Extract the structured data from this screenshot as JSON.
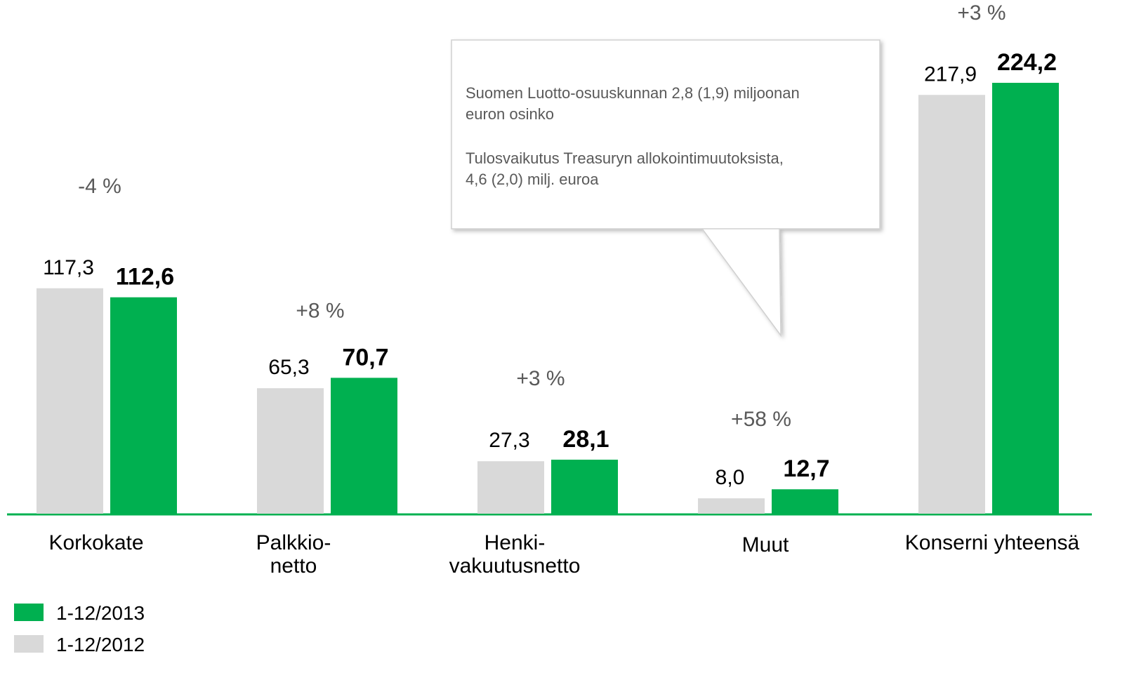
{
  "chart_data": {
    "type": "bar",
    "categories": [
      "Korkokate",
      "Palkkio-\nnetto",
      "Henki-\nvakuutusnetto",
      "Muut",
      "Konserni yhteensä"
    ],
    "series": [
      {
        "name": "1-12/2012",
        "color": "#d9d9d9",
        "values": [
          117.3,
          65.3,
          27.3,
          8.0,
          217.9
        ],
        "value_labels": [
          "117,3",
          "65,3",
          "27,3",
          "8,0",
          "217,9"
        ]
      },
      {
        "name": "1-12/2013",
        "color": "#00b050",
        "values": [
          112.6,
          70.7,
          28.1,
          12.7,
          224.2
        ],
        "value_labels": [
          "112,6",
          "70,7",
          "28,1",
          "12,7",
          "224,2"
        ]
      }
    ],
    "change_labels": [
      "-4 %",
      "+8 %",
      "+3 %",
      "+58 %",
      "+3 %"
    ],
    "callout": [
      "Suomen Luotto-osuuskunnan 2,8 (1,9) miljoonan\neuron osinko",
      "Tulosvaikutus Treasuryn allokointimuutoksista,\n4,6 (2,0) milj. euroa"
    ]
  }
}
